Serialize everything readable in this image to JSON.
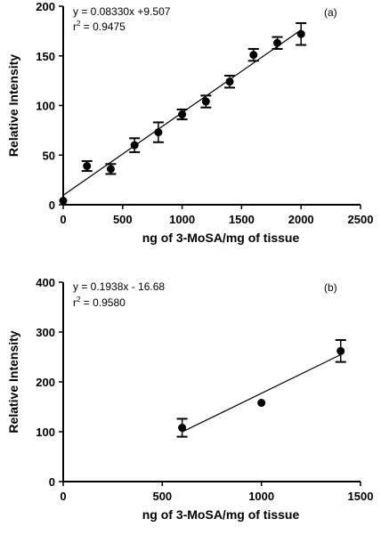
{
  "chart_data": [
    {
      "type": "scatter",
      "panel_label": "(a)",
      "xlabel": "ng of 3-MoSA/mg of tissue",
      "ylabel": "Relative Intensity",
      "xlim": [
        0,
        2500
      ],
      "ylim": [
        0,
        200
      ],
      "x_ticks": [
        0,
        500,
        1000,
        1500,
        2000,
        2500
      ],
      "y_ticks": [
        0,
        50,
        100,
        150,
        200
      ],
      "equation": "y = 0.08330x +9.507",
      "r2_prefix": "r",
      "r2_suffix": " = 0.9475",
      "fit": {
        "slope": 0.0833,
        "intercept": 9.507,
        "x_range": [
          0,
          2000
        ]
      },
      "points": [
        {
          "x": 0,
          "y": 4,
          "err": 0
        },
        {
          "x": 200,
          "y": 39,
          "err": 5
        },
        {
          "x": 400,
          "y": 36,
          "err": 5
        },
        {
          "x": 600,
          "y": 60,
          "err": 7
        },
        {
          "x": 800,
          "y": 73,
          "err": 10
        },
        {
          "x": 1000,
          "y": 91,
          "err": 5
        },
        {
          "x": 1200,
          "y": 104,
          "err": 6
        },
        {
          "x": 1400,
          "y": 124,
          "err": 6
        },
        {
          "x": 1600,
          "y": 151,
          "err": 6
        },
        {
          "x": 1800,
          "y": 163,
          "err": 6
        },
        {
          "x": 2000,
          "y": 172,
          "err": 11
        }
      ],
      "grid": false,
      "legend": "none"
    },
    {
      "type": "scatter",
      "panel_label": "(b)",
      "xlabel": "ng of 3-MoSA/mg of tissue",
      "ylabel": "Relative Intensity",
      "xlim": [
        0,
        1500
      ],
      "ylim": [
        0,
        400
      ],
      "x_ticks": [
        0,
        500,
        1000,
        1500
      ],
      "y_ticks": [
        0,
        100,
        200,
        300,
        400
      ],
      "equation": "y = 0.1938x - 16.68",
      "r2_prefix": "r",
      "r2_suffix": " = 0.9580",
      "fit": {
        "slope": 0.1938,
        "intercept": -16.68,
        "x_range": [
          600,
          1400
        ]
      },
      "points": [
        {
          "x": 600,
          "y": 108,
          "err": 18
        },
        {
          "x": 1000,
          "y": 158,
          "err": 0
        },
        {
          "x": 1400,
          "y": 262,
          "err": 22
        }
      ],
      "grid": false,
      "legend": "none"
    }
  ]
}
